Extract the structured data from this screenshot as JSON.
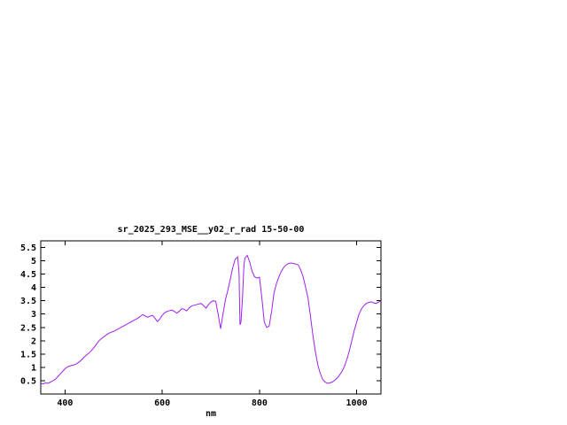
{
  "window": {
    "background": "#ffffff"
  },
  "chart_data": {
    "type": "line",
    "title": "sr_2025_293_MSE__y02_r_rad 15-50-00",
    "xlabel": "nm",
    "ylabel": "",
    "xlim": [
      350,
      1050
    ],
    "ylim": [
      0,
      5.75
    ],
    "grid": false,
    "legend": "none",
    "line_color": "#a020f0",
    "axis_color": "#000000",
    "xticks": [
      {
        "v": 400,
        "label": "400"
      },
      {
        "v": 600,
        "label": "600"
      },
      {
        "v": 800,
        "label": "800"
      },
      {
        "v": 1000,
        "label": "1000"
      }
    ],
    "yticks": [
      {
        "v": 0.5,
        "label": "0.5"
      },
      {
        "v": 1,
        "label": "1"
      },
      {
        "v": 1.5,
        "label": "1.5"
      },
      {
        "v": 2,
        "label": "2"
      },
      {
        "v": 2.5,
        "label": "2.5"
      },
      {
        "v": 3,
        "label": "3"
      },
      {
        "v": 3.5,
        "label": "3.5"
      },
      {
        "v": 4,
        "label": "4"
      },
      {
        "v": 4.5,
        "label": "4.5"
      },
      {
        "v": 5,
        "label": "5"
      },
      {
        "v": 5.5,
        "label": "5.5"
      }
    ],
    "x": [
      350,
      355,
      360,
      365,
      370,
      375,
      380,
      385,
      390,
      395,
      400,
      405,
      410,
      415,
      420,
      425,
      430,
      435,
      440,
      445,
      450,
      455,
      460,
      465,
      470,
      475,
      480,
      485,
      490,
      495,
      500,
      505,
      510,
      515,
      520,
      525,
      530,
      535,
      540,
      545,
      550,
      555,
      560,
      565,
      570,
      575,
      580,
      585,
      590,
      595,
      600,
      605,
      610,
      615,
      620,
      625,
      630,
      635,
      640,
      645,
      650,
      655,
      660,
      665,
      670,
      675,
      680,
      685,
      690,
      695,
      700,
      705,
      710,
      715,
      720,
      725,
      730,
      735,
      740,
      745,
      750,
      755,
      758,
      760,
      762,
      765,
      768,
      770,
      775,
      780,
      785,
      790,
      795,
      800,
      805,
      810,
      815,
      820,
      825,
      830,
      835,
      840,
      845,
      850,
      855,
      860,
      865,
      870,
      875,
      880,
      885,
      890,
      895,
      900,
      905,
      910,
      915,
      920,
      925,
      930,
      935,
      940,
      945,
      950,
      955,
      960,
      965,
      970,
      975,
      980,
      985,
      990,
      995,
      1000,
      1005,
      1010,
      1015,
      1020,
      1025,
      1030,
      1035,
      1040,
      1045,
      1050
    ],
    "values": [
      0.4,
      0.38,
      0.42,
      0.4,
      0.45,
      0.5,
      0.55,
      0.65,
      0.75,
      0.85,
      0.95,
      1.02,
      1.05,
      1.08,
      1.1,
      1.15,
      1.22,
      1.3,
      1.4,
      1.48,
      1.55,
      1.65,
      1.75,
      1.88,
      2.0,
      2.08,
      2.15,
      2.22,
      2.28,
      2.32,
      2.35,
      2.4,
      2.45,
      2.5,
      2.55,
      2.6,
      2.65,
      2.7,
      2.75,
      2.8,
      2.85,
      2.92,
      2.98,
      2.93,
      2.88,
      2.92,
      2.95,
      2.85,
      2.72,
      2.82,
      2.95,
      3.05,
      3.1,
      3.13,
      3.15,
      3.1,
      3.03,
      3.1,
      3.2,
      3.18,
      3.12,
      3.22,
      3.3,
      3.33,
      3.35,
      3.38,
      3.4,
      3.32,
      3.22,
      3.35,
      3.45,
      3.5,
      3.48,
      3.0,
      2.45,
      3.0,
      3.55,
      3.9,
      4.3,
      4.75,
      5.05,
      5.15,
      4.6,
      2.6,
      2.7,
      3.6,
      4.8,
      5.1,
      5.2,
      4.95,
      4.6,
      4.4,
      4.35,
      4.38,
      3.6,
      2.7,
      2.5,
      2.55,
      3.1,
      3.8,
      4.15,
      4.4,
      4.6,
      4.75,
      4.85,
      4.9,
      4.92,
      4.9,
      4.88,
      4.85,
      4.65,
      4.4,
      4.0,
      3.6,
      2.9,
      2.2,
      1.6,
      1.1,
      0.78,
      0.55,
      0.45,
      0.4,
      0.42,
      0.45,
      0.52,
      0.6,
      0.72,
      0.85,
      1.05,
      1.3,
      1.62,
      2.0,
      2.38,
      2.7,
      3.0,
      3.2,
      3.32,
      3.4,
      3.44,
      3.46,
      3.42,
      3.4,
      3.45,
      3.5
    ]
  }
}
